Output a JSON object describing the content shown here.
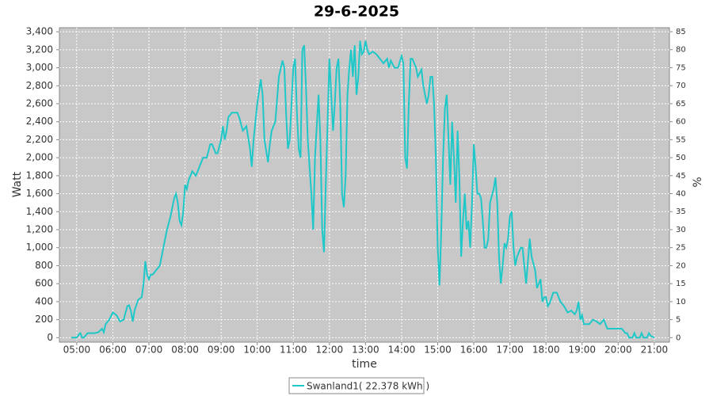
{
  "chart_data": {
    "type": "line",
    "title": "29-6-2025",
    "xlabel": "time",
    "ylabel": "Watt",
    "y2label": "%",
    "xlim": [
      4.52,
      21.42
    ],
    "xticks": [
      {
        "value": 5,
        "label": "05:00"
      },
      {
        "value": 6,
        "label": "06:00"
      },
      {
        "value": 7,
        "label": "07:00"
      },
      {
        "value": 8,
        "label": "08:00"
      },
      {
        "value": 9,
        "label": "09:00"
      },
      {
        "value": 10,
        "label": "10:00"
      },
      {
        "value": 11,
        "label": "11:00"
      },
      {
        "value": 12,
        "label": "12:00"
      },
      {
        "value": 13,
        "label": "13:00"
      },
      {
        "value": 14,
        "label": "14:00"
      },
      {
        "value": 15,
        "label": "15:00"
      },
      {
        "value": 16,
        "label": "16:00"
      },
      {
        "value": 17,
        "label": "17:00"
      },
      {
        "value": 18,
        "label": "18:00"
      },
      {
        "value": 19,
        "label": "19:00"
      },
      {
        "value": 20,
        "label": "20:00"
      },
      {
        "value": 21,
        "label": "21:00"
      }
    ],
    "ylim": [
      -50,
      3445
    ],
    "yticks": [
      0,
      200,
      400,
      600,
      800,
      {
        "value": 1000,
        "label": "1,000"
      },
      {
        "value": 1200,
        "label": "1,200"
      },
      {
        "value": 1400,
        "label": "1,400"
      },
      {
        "value": 1600,
        "label": "1,600"
      },
      {
        "value": 1800,
        "label": "1,800"
      },
      {
        "value": 2000,
        "label": "2,000"
      },
      {
        "value": 2200,
        "label": "2,200"
      },
      {
        "value": 2400,
        "label": "2,400"
      },
      {
        "value": 2600,
        "label": "2,600"
      },
      {
        "value": 2800,
        "label": "2,800"
      },
      {
        "value": 3000,
        "label": "3,000"
      },
      {
        "value": 3200,
        "label": "3,200"
      },
      {
        "value": 3400,
        "label": "3,400"
      }
    ],
    "y2lim": [
      -1.25,
      86.1
    ],
    "y2ticks": [
      0,
      5,
      10,
      15,
      20,
      25,
      30,
      35,
      40,
      45,
      50,
      55,
      60,
      65,
      70,
      75,
      80,
      85
    ],
    "grid": true,
    "legend": "bottom",
    "x": [
      4.85,
      5.0,
      5.05,
      5.1,
      5.15,
      5.2,
      5.3,
      5.5,
      5.6,
      5.7,
      5.75,
      5.8,
      5.9,
      6.0,
      6.1,
      6.2,
      6.3,
      6.4,
      6.45,
      6.5,
      6.55,
      6.6,
      6.7,
      6.8,
      6.85,
      6.9,
      6.95,
      7.0,
      7.05,
      7.1,
      7.2,
      7.3,
      7.4,
      7.5,
      7.6,
      7.7,
      7.75,
      7.8,
      7.85,
      7.9,
      7.95,
      8.0,
      8.05,
      8.1,
      8.2,
      8.3,
      8.4,
      8.5,
      8.6,
      8.7,
      8.75,
      8.85,
      8.9,
      9.0,
      9.05,
      9.1,
      9.15,
      9.2,
      9.3,
      9.45,
      9.5,
      9.6,
      9.7,
      9.8,
      9.85,
      9.9,
      10.0,
      10.1,
      10.15,
      10.2,
      10.3,
      10.35,
      10.4,
      10.5,
      10.6,
      10.7,
      10.75,
      10.8,
      10.85,
      10.9,
      11.0,
      11.05,
      11.1,
      11.15,
      11.2,
      11.25,
      11.3,
      11.35,
      11.4,
      11.5,
      11.55,
      11.6,
      11.7,
      11.75,
      11.8,
      11.85,
      11.9,
      12.0,
      12.05,
      12.1,
      12.15,
      12.2,
      12.25,
      12.3,
      12.35,
      12.4,
      12.45,
      12.5,
      12.55,
      12.6,
      12.65,
      12.7,
      12.75,
      12.8,
      12.85,
      12.9,
      12.95,
      13.0,
      13.05,
      13.1,
      13.2,
      13.3,
      13.4,
      13.5,
      13.6,
      13.65,
      13.7,
      13.8,
      13.9,
      14.0,
      14.05,
      14.1,
      14.15,
      14.2,
      14.25,
      14.3,
      14.4,
      14.45,
      14.55,
      14.6,
      14.7,
      14.75,
      14.8,
      14.85,
      14.9,
      14.95,
      15.0,
      15.05,
      15.1,
      15.15,
      15.2,
      15.25,
      15.3,
      15.35,
      15.4,
      15.45,
      15.5,
      15.55,
      15.6,
      15.65,
      15.7,
      15.75,
      15.8,
      15.85,
      15.9,
      15.95,
      16.0,
      16.05,
      16.1,
      16.15,
      16.2,
      16.25,
      16.3,
      16.35,
      16.4,
      16.45,
      16.55,
      16.6,
      16.65,
      16.7,
      16.75,
      16.8,
      16.85,
      16.9,
      16.95,
      17.0,
      17.05,
      17.1,
      17.15,
      17.2,
      17.3,
      17.35,
      17.4,
      17.45,
      17.5,
      17.55,
      17.6,
      17.7,
      17.75,
      17.8,
      17.85,
      17.9,
      17.95,
      18.0,
      18.05,
      18.1,
      18.2,
      18.3,
      18.4,
      18.5,
      18.6,
      18.7,
      18.8,
      18.85,
      18.9,
      18.95,
      19.0,
      19.05,
      19.2,
      19.3,
      19.4,
      19.5,
      19.6,
      19.7,
      19.8,
      19.9,
      20.0,
      20.1,
      20.2,
      20.25,
      20.3,
      20.4,
      20.45,
      20.5,
      20.6,
      20.65,
      20.7,
      20.8,
      20.85,
      20.9,
      21.0
    ],
    "series": [
      {
        "name": "Swanland1( 22.378 kWh )",
        "color": "#1ec8c8",
        "values": [
          0,
          0,
          30,
          50,
          0,
          0,
          50,
          50,
          60,
          100,
          60,
          150,
          200,
          280,
          250,
          180,
          200,
          350,
          360,
          300,
          180,
          300,
          420,
          450,
          600,
          850,
          700,
          650,
          700,
          700,
          750,
          800,
          1000,
          1200,
          1350,
          1550,
          1600,
          1500,
          1300,
          1250,
          1400,
          1700,
          1650,
          1750,
          1850,
          1800,
          1900,
          2000,
          2000,
          2150,
          2150,
          2050,
          2050,
          2200,
          2350,
          2200,
          2300,
          2450,
          2500,
          2500,
          2450,
          2300,
          2350,
          2100,
          1900,
          2200,
          2600,
          2870,
          2700,
          2200,
          1950,
          2150,
          2300,
          2400,
          2900,
          3080,
          3000,
          2500,
          2100,
          2200,
          3000,
          3100,
          2500,
          2100,
          2000,
          3200,
          3250,
          2800,
          2200,
          1600,
          1200,
          2000,
          2700,
          2200,
          1200,
          950,
          1700,
          3100,
          2700,
          2300,
          2600,
          3000,
          3100,
          2600,
          1600,
          1450,
          1800,
          2700,
          3000,
          3200,
          2900,
          3250,
          2700,
          2900,
          3300,
          3150,
          3180,
          3300,
          3200,
          3150,
          3180,
          3150,
          3100,
          3050,
          3100,
          3000,
          3080,
          3000,
          3000,
          3130,
          3050,
          2000,
          1880,
          2600,
          3100,
          3100,
          3000,
          2900,
          2980,
          2800,
          2600,
          2700,
          2900,
          2900,
          2600,
          2000,
          1000,
          580,
          1200,
          2000,
          2550,
          2700,
          2200,
          1700,
          2400,
          2000,
          1500,
          2300,
          1800,
          900,
          1300,
          1600,
          1200,
          1300,
          1000,
          1500,
          2150,
          1900,
          1600,
          1600,
          1550,
          1300,
          1000,
          1000,
          1100,
          1500,
          1650,
          1780,
          1500,
          900,
          600,
          800,
          1050,
          1000,
          1100,
          1350,
          1400,
          1000,
          800,
          900,
          1000,
          1000,
          800,
          600,
          850,
          1100,
          900,
          750,
          550,
          600,
          650,
          400,
          450,
          450,
          350,
          380,
          500,
          500,
          400,
          350,
          280,
          300,
          260,
          300,
          400,
          200,
          250,
          150,
          150,
          200,
          180,
          150,
          200,
          100,
          100,
          100,
          100,
          100,
          50,
          50,
          0,
          0,
          50,
          0,
          0,
          50,
          0,
          0,
          50,
          20,
          0
        ]
      }
    ]
  }
}
